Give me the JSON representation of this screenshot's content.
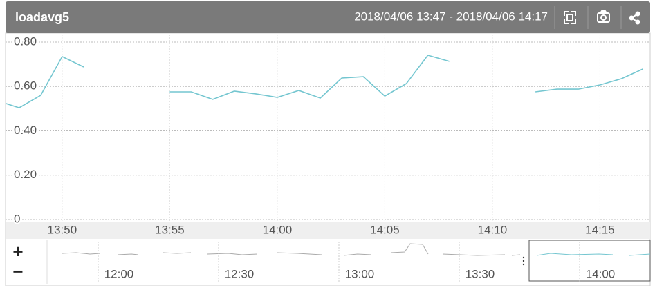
{
  "chart_data": {
    "type": "line",
    "title": "loadavg5",
    "subtitle": "2018/04/06 13:47 - 2018/04/06 14:17",
    "x": [
      "13:47",
      "13:48",
      "13:49",
      "13:50",
      "13:51",
      "13:52",
      "13:53",
      "13:54",
      "13:55",
      "13:56",
      "13:57",
      "13:58",
      "13:59",
      "14:00",
      "14:01",
      "14:02",
      "14:03",
      "14:04",
      "14:05",
      "14:06",
      "14:07",
      "14:08",
      "14:09",
      "14:10",
      "14:11",
      "14:12",
      "14:13",
      "14:14",
      "14:15",
      "14:16",
      "14:17"
    ],
    "values": [
      0.535,
      0.504,
      0.56,
      0.735,
      0.688,
      null,
      null,
      null,
      0.576,
      0.576,
      0.542,
      0.579,
      0.567,
      0.551,
      0.582,
      0.548,
      0.638,
      0.644,
      0.557,
      0.613,
      0.741,
      0.713,
      null,
      null,
      null,
      0.576,
      0.588,
      0.588,
      0.607,
      0.635,
      0.679
    ],
    "color": "#74c6d0",
    "xlim": [
      "13:47:22",
      "14:17:20"
    ],
    "xticks": [
      "13:50",
      "13:55",
      "14:00",
      "14:05",
      "14:10",
      "14:15"
    ],
    "ylim": [
      0,
      0.8
    ],
    "yticks": [
      0,
      {
        "value": 0.2,
        "label": "0.20"
      },
      {
        "value": 0.4,
        "label": "0.40"
      },
      {
        "value": 0.6,
        "label": "0.60"
      },
      {
        "value": 0.8,
        "label": "0.80"
      }
    ],
    "grid": true
  },
  "navigator": {
    "labels": [
      "12:00",
      "12:30",
      "13:00",
      "13:30",
      "14:00"
    ],
    "zoom_in": "+",
    "zoom_out": "−"
  }
}
